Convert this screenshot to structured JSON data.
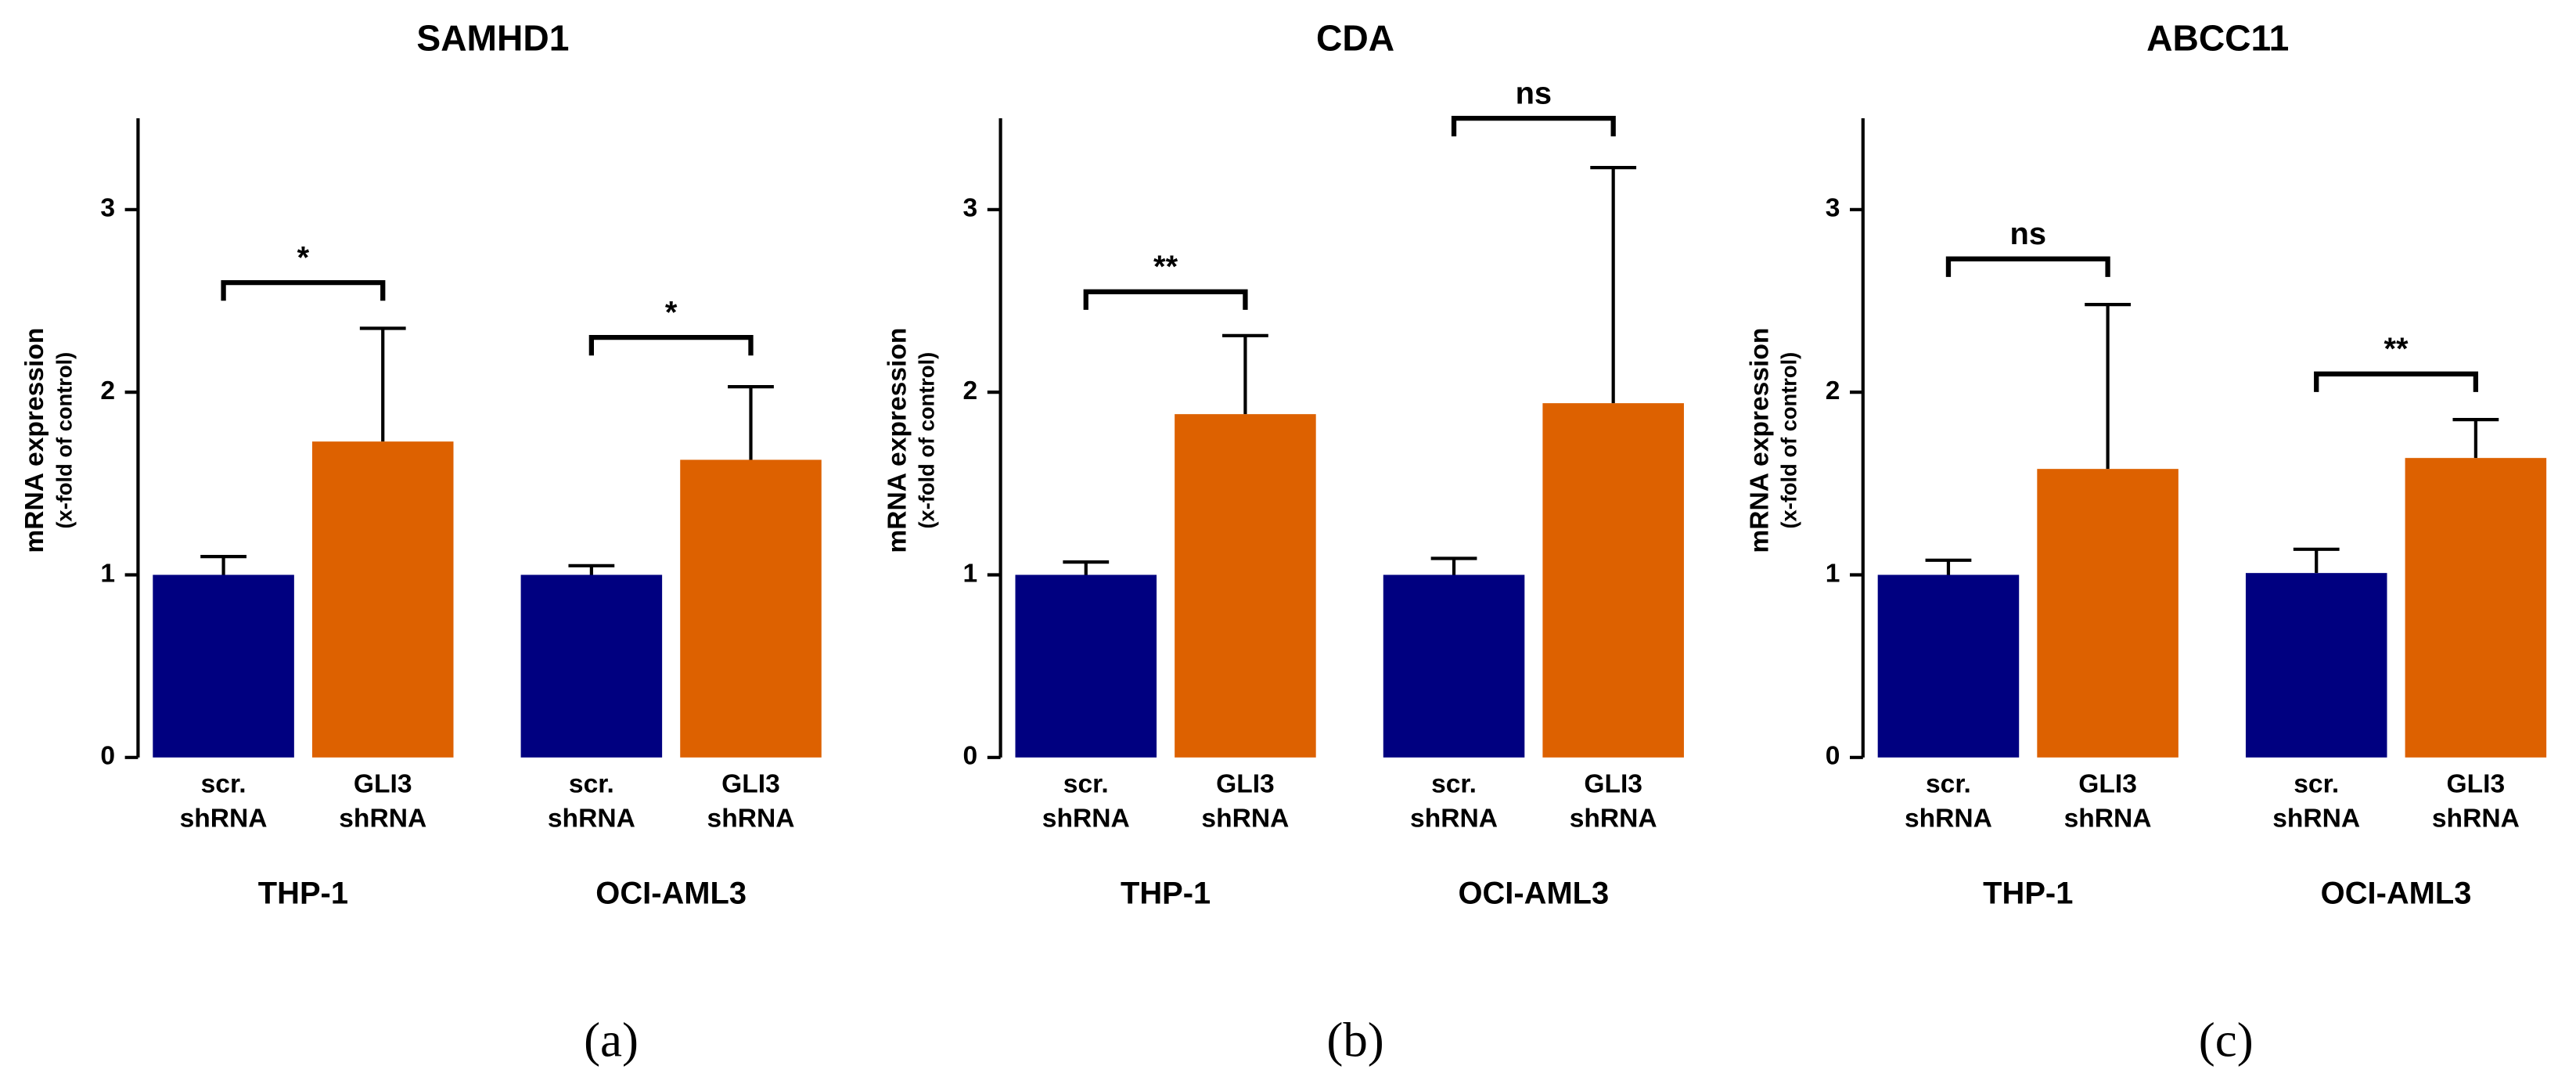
{
  "chart_data": [
    {
      "type": "bar",
      "title": "SAMHD1",
      "y_label": [
        "mRNA expression",
        "(x-fold of control)"
      ],
      "categories": [
        [
          "scr.",
          "shRNA"
        ],
        [
          "GLI3",
          "shRNA"
        ],
        [
          "scr.",
          "shRNA"
        ],
        [
          "GLI3",
          "shRNA"
        ]
      ],
      "groups": [
        "THP-1",
        "OCI-AML3"
      ],
      "values": [
        1.0,
        1.73,
        1.0,
        1.63
      ],
      "errors": [
        0.1,
        0.62,
        0.05,
        0.4
      ],
      "colors": [
        "#000080",
        "#dd6100",
        "#000080",
        "#dd6100"
      ],
      "ylim": [
        0,
        3.5
      ],
      "yticks": [
        0,
        1,
        2,
        3
      ],
      "annotations": [
        {
          "label": "*",
          "bars": [
            0,
            1
          ],
          "y": 2.6
        },
        {
          "label": "*",
          "bars": [
            2,
            3
          ],
          "y": 2.3
        }
      ],
      "panel_label": "(a)"
    },
    {
      "type": "bar",
      "title": "CDA",
      "y_label": [
        "mRNA expression",
        "(x-fold of control)"
      ],
      "categories": [
        [
          "scr.",
          "shRNA"
        ],
        [
          "GLI3",
          "shRNA"
        ],
        [
          "scr.",
          "shRNA"
        ],
        [
          "GLI3",
          "shRNA"
        ]
      ],
      "groups": [
        "THP-1",
        "OCI-AML3"
      ],
      "values": [
        1.0,
        1.88,
        1.0,
        1.94
      ],
      "errors": [
        0.07,
        0.43,
        0.09,
        1.29
      ],
      "colors": [
        "#000080",
        "#dd6100",
        "#000080",
        "#dd6100"
      ],
      "ylim": [
        0,
        3.5
      ],
      "yticks": [
        0,
        1,
        2,
        3
      ],
      "annotations": [
        {
          "label": "**",
          "bars": [
            0,
            1
          ],
          "y": 2.55
        },
        {
          "label": "ns",
          "bars": [
            2,
            3
          ],
          "y": 3.5
        }
      ],
      "panel_label": "(b)"
    },
    {
      "type": "bar",
      "title": "ABCC11",
      "y_label": [
        "mRNA expression",
        "(x-fold of control)"
      ],
      "categories": [
        [
          "scr.",
          "shRNA"
        ],
        [
          "GLI3",
          "shRNA"
        ],
        [
          "scr.",
          "shRNA"
        ],
        [
          "GLI3",
          "shRNA"
        ]
      ],
      "groups": [
        "THP-1",
        "OCI-AML3"
      ],
      "values": [
        1.0,
        1.58,
        1.01,
        1.64
      ],
      "errors": [
        0.08,
        0.9,
        0.13,
        0.21
      ],
      "colors": [
        "#000080",
        "#dd6100",
        "#000080",
        "#dd6100"
      ],
      "ylim": [
        0,
        3.5
      ],
      "yticks": [
        0,
        1,
        2,
        3
      ],
      "annotations": [
        {
          "label": "ns",
          "bars": [
            0,
            1
          ],
          "y": 2.73
        },
        {
          "label": "**",
          "bars": [
            2,
            3
          ],
          "y": 2.1
        }
      ],
      "panel_label": "(c)"
    }
  ]
}
